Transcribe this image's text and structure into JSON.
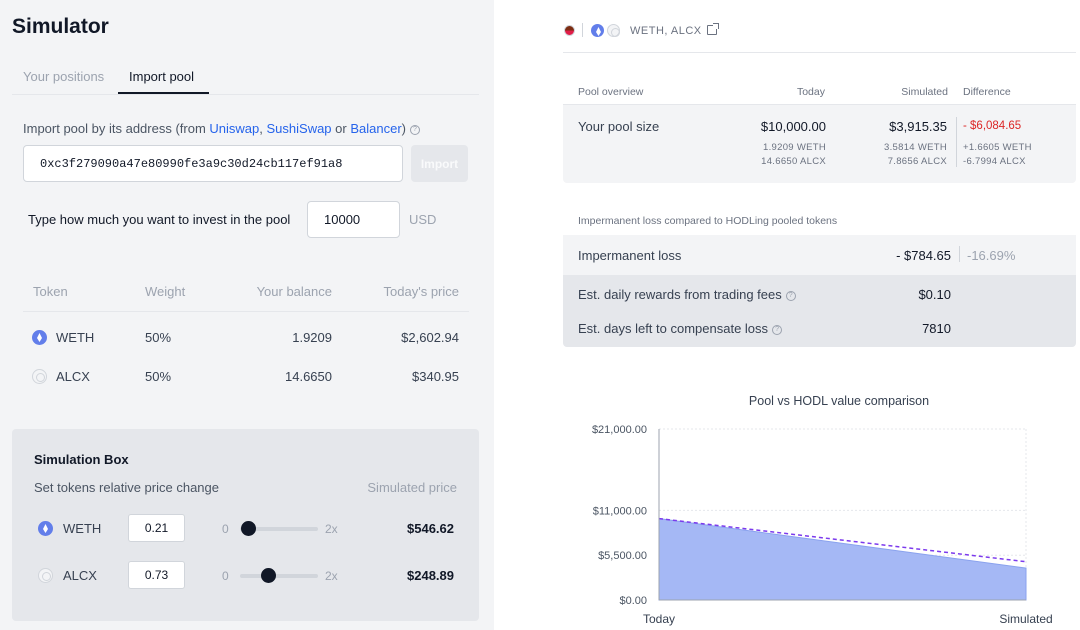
{
  "left": {
    "title": "Simulator",
    "tabs": [
      "Your positions",
      "Import pool"
    ],
    "import": {
      "label_prefix": "Import pool by its address (from ",
      "links": [
        "Uniswap",
        "SushiSwap",
        "Balancer"
      ],
      "sep1": ", ",
      "sep2": " or ",
      "label_suffix": ")",
      "address": "0xc3f279090a47e80990fe3a9c30d24cb117ef91a8",
      "button": "Import"
    },
    "invest": {
      "label": "Type how much you want to invest in the pool",
      "value": "10000",
      "unit": "USD"
    },
    "tokens": {
      "headers": [
        "Token",
        "Weight",
        "Your balance",
        "Today's price"
      ],
      "rows": [
        {
          "icon": "weth-icon",
          "token": "WETH",
          "weight": "50%",
          "balance": "1.9209",
          "price": "$2,602.94"
        },
        {
          "icon": "alcx-icon",
          "token": "ALCX",
          "weight": "50%",
          "balance": "14.6650",
          "price": "$340.95"
        }
      ]
    },
    "simbox": {
      "title": "Simulation Box",
      "subtitle": "Set tokens relative price change",
      "price_header": "Simulated price",
      "slider_min": "0",
      "slider_max": "2x",
      "rows": [
        {
          "token": "WETH",
          "value": "0.21",
          "level": 0.105,
          "price": "$546.62"
        },
        {
          "token": "ALCX",
          "value": "0.73",
          "level": 0.365,
          "price": "$248.89"
        }
      ]
    }
  },
  "right": {
    "pair": "WETH, ALCX",
    "overview": {
      "headers": [
        "Pool overview",
        "Today",
        "Simulated",
        "Difference"
      ],
      "label": "Your pool size",
      "today": {
        "total": "$10,000.00",
        "a": "1.9209 WETH",
        "b": "14.6650 ALCX"
      },
      "simulated": {
        "total": "$3,915.35",
        "a": "3.5814 WETH",
        "b": "7.8656 ALCX"
      },
      "difference": {
        "total": "- $6,084.65",
        "a": "+1.6605 WETH",
        "b": "-6.7994 ALCX"
      }
    },
    "il": {
      "caption": "Impermanent loss compared to HODLing pooled tokens",
      "rows": [
        {
          "label": "Impermanent loss",
          "value": "- $784.65",
          "pct": "-16.69%"
        },
        {
          "label": "Est. daily rewards from trading fees",
          "value": "$0.10"
        },
        {
          "label": "Est. days left to compensate loss",
          "value": "7810"
        }
      ]
    },
    "accent_blue": "#a5b8f5",
    "accent_purple": "#7c3aed"
  },
  "chart_data": {
    "type": "area",
    "title": "Pool vs HODL value comparison",
    "x": [
      "Today",
      "Simulated"
    ],
    "series": [
      {
        "values": [
          10000,
          3915.35
        ]
      },
      {
        "values": [
          10000,
          4700
        ]
      }
    ],
    "yticks": [
      "$21,000.00",
      "$11,000.00",
      "$5,500.00",
      "$0.00"
    ],
    "ytick_values": [
      21000,
      11000,
      5500,
      0
    ],
    "ylim": [
      0,
      21000
    ],
    "grid": true
  }
}
